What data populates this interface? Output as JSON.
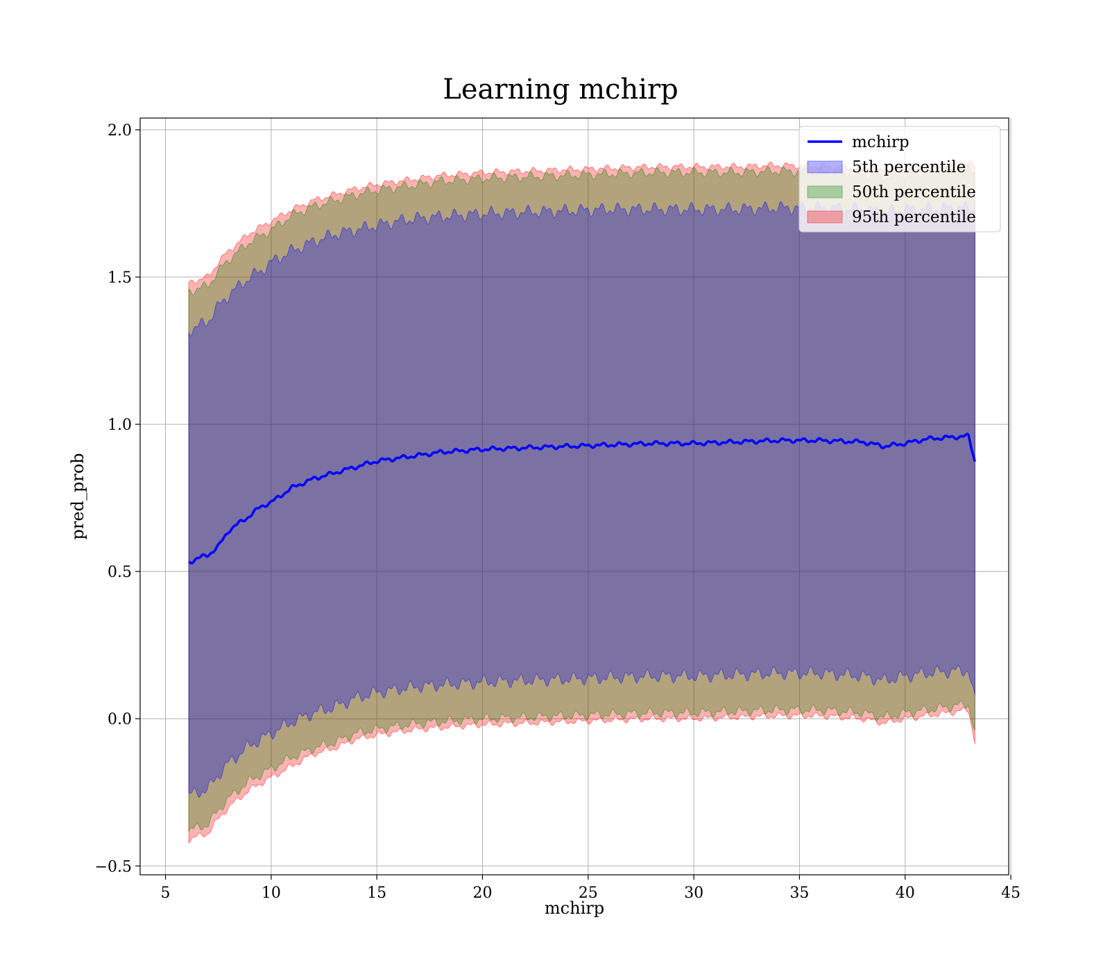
{
  "chart_data": {
    "type": "area",
    "title": "Learning mchirp",
    "xlabel": "mchirp",
    "ylabel": "pred_prob",
    "xlim": [
      3.8,
      44.9
    ],
    "ylim": [
      -0.53,
      2.04
    ],
    "xticks": [
      5,
      10,
      15,
      20,
      25,
      30,
      35,
      40,
      45
    ],
    "xtick_labels": [
      "5",
      "10",
      "15",
      "20",
      "25",
      "30",
      "35",
      "40",
      "45"
    ],
    "yticks": [
      -0.5,
      0.0,
      0.5,
      1.0,
      1.5,
      2.0
    ],
    "ytick_labels": [
      "−0.5",
      "0.0",
      "0.5",
      "1.0",
      "1.5",
      "2.0"
    ],
    "grid": true,
    "legend_position": "top-right",
    "x_range": [
      6.1,
      43.3
    ],
    "mean_series": {
      "name": "mchirp",
      "color": "#0000ff",
      "x": [
        6.1,
        6.5,
        7.0,
        7.5,
        8.0,
        8.5,
        9.0,
        9.5,
        10.0,
        11.0,
        12.0,
        13.0,
        14.0,
        15.0,
        16.0,
        17.0,
        18.0,
        19.0,
        20.0,
        22.0,
        24.0,
        26.0,
        28.0,
        30.0,
        32.0,
        34.0,
        36.0,
        38.0,
        39.0,
        40.0,
        41.0,
        42.0,
        43.0,
        43.3
      ],
      "y": [
        0.53,
        0.545,
        0.555,
        0.585,
        0.64,
        0.665,
        0.69,
        0.72,
        0.735,
        0.785,
        0.815,
        0.835,
        0.855,
        0.875,
        0.885,
        0.895,
        0.905,
        0.91,
        0.915,
        0.92,
        0.925,
        0.93,
        0.935,
        0.935,
        0.94,
        0.945,
        0.945,
        0.94,
        0.925,
        0.935,
        0.95,
        0.955,
        0.96,
        0.875
      ]
    },
    "bands": [
      {
        "name": "95th percentile",
        "color": "#ff0000",
        "opacity": 0.3,
        "x": [
          6.1,
          6.5,
          7.0,
          7.5,
          8.0,
          8.5,
          9.0,
          9.5,
          10.0,
          11.0,
          12.0,
          13.0,
          14.0,
          15.0,
          16.0,
          17.0,
          18.0,
          19.0,
          20.0,
          22.0,
          24.0,
          26.0,
          28.0,
          30.0,
          32.0,
          34.0,
          36.0,
          38.0,
          39.0,
          40.0,
          41.0,
          42.0,
          43.0,
          43.3
        ],
        "upper": [
          1.48,
          1.49,
          1.5,
          1.55,
          1.59,
          1.62,
          1.65,
          1.67,
          1.69,
          1.73,
          1.76,
          1.78,
          1.8,
          1.815,
          1.825,
          1.835,
          1.845,
          1.85,
          1.855,
          1.86,
          1.865,
          1.87,
          1.875,
          1.875,
          1.875,
          1.88,
          1.875,
          1.87,
          1.86,
          1.87,
          1.875,
          1.88,
          1.885,
          1.88
        ],
        "lower": [
          -0.41,
          -0.4,
          -0.39,
          -0.34,
          -0.3,
          -0.27,
          -0.24,
          -0.22,
          -0.2,
          -0.16,
          -0.12,
          -0.1,
          -0.07,
          -0.055,
          -0.045,
          -0.035,
          -0.03,
          -0.025,
          -0.02,
          -0.015,
          -0.01,
          -0.005,
          0.0,
          0.0,
          0.005,
          0.01,
          0.01,
          0.0,
          -0.015,
          0.0,
          0.01,
          0.02,
          0.03,
          -0.08
        ]
      },
      {
        "name": "50th percentile",
        "color": "#008000",
        "opacity": 0.3,
        "x": [
          6.1,
          6.5,
          7.0,
          7.5,
          8.0,
          8.5,
          9.0,
          9.5,
          10.0,
          11.0,
          12.0,
          13.0,
          14.0,
          15.0,
          16.0,
          17.0,
          18.0,
          19.0,
          20.0,
          22.0,
          24.0,
          26.0,
          28.0,
          30.0,
          32.0,
          34.0,
          36.0,
          38.0,
          39.0,
          40.0,
          41.0,
          42.0,
          43.0,
          43.3
        ],
        "upper": [
          1.45,
          1.46,
          1.47,
          1.52,
          1.56,
          1.59,
          1.62,
          1.64,
          1.66,
          1.71,
          1.74,
          1.76,
          1.78,
          1.795,
          1.805,
          1.815,
          1.825,
          1.83,
          1.835,
          1.84,
          1.845,
          1.85,
          1.855,
          1.855,
          1.855,
          1.86,
          1.855,
          1.85,
          1.84,
          1.85,
          1.855,
          1.86,
          1.865,
          1.86
        ],
        "lower": [
          -0.38,
          -0.37,
          -0.36,
          -0.31,
          -0.27,
          -0.24,
          -0.21,
          -0.19,
          -0.17,
          -0.13,
          -0.1,
          -0.08,
          -0.05,
          -0.035,
          -0.025,
          -0.015,
          -0.01,
          -0.005,
          0.0,
          0.005,
          0.01,
          0.015,
          0.02,
          0.02,
          0.025,
          0.03,
          0.03,
          0.02,
          0.005,
          0.02,
          0.03,
          0.04,
          0.05,
          -0.05
        ]
      },
      {
        "name": "5th percentile",
        "color": "#0000ff",
        "opacity": 0.3,
        "x": [
          6.1,
          6.5,
          7.0,
          7.5,
          8.0,
          8.5,
          9.0,
          9.5,
          10.0,
          11.0,
          12.0,
          13.0,
          14.0,
          15.0,
          16.0,
          17.0,
          18.0,
          19.0,
          20.0,
          22.0,
          24.0,
          26.0,
          28.0,
          30.0,
          32.0,
          34.0,
          36.0,
          38.0,
          39.0,
          40.0,
          41.0,
          42.0,
          43.0,
          43.3
        ],
        "upper": [
          1.32,
          1.33,
          1.35,
          1.4,
          1.44,
          1.47,
          1.5,
          1.52,
          1.55,
          1.59,
          1.62,
          1.645,
          1.66,
          1.675,
          1.69,
          1.7,
          1.705,
          1.71,
          1.715,
          1.72,
          1.725,
          1.73,
          1.73,
          1.73,
          1.73,
          1.735,
          1.735,
          1.73,
          1.72,
          1.73,
          1.73,
          1.735,
          1.735,
          1.73
        ],
        "lower": [
          -0.26,
          -0.25,
          -0.24,
          -0.19,
          -0.15,
          -0.12,
          -0.09,
          -0.07,
          -0.05,
          -0.01,
          0.02,
          0.04,
          0.07,
          0.09,
          0.1,
          0.11,
          0.115,
          0.12,
          0.125,
          0.13,
          0.135,
          0.14,
          0.145,
          0.145,
          0.15,
          0.155,
          0.155,
          0.145,
          0.13,
          0.145,
          0.155,
          0.16,
          0.165,
          0.06
        ]
      }
    ],
    "legend": [
      {
        "label": "mchirp",
        "kind": "line",
        "color": "#0000ff"
      },
      {
        "label": "5th percentile",
        "kind": "patch",
        "color": "#0000ff"
      },
      {
        "label": "50th percentile",
        "kind": "patch",
        "color": "#008000"
      },
      {
        "label": "95th percentile",
        "kind": "patch",
        "color": "#ff0000"
      }
    ]
  }
}
